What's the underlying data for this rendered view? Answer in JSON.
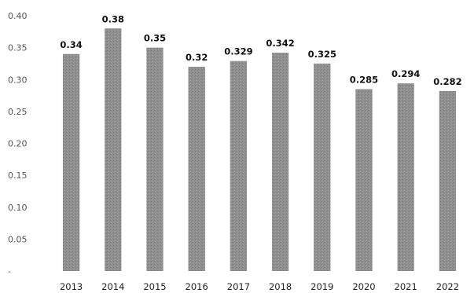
{
  "chart_data": {
    "type": "bar",
    "title": "",
    "xlabel": "",
    "ylabel": "",
    "categories": [
      "2013",
      "2014",
      "2015",
      "2016",
      "2017",
      "2018",
      "2019",
      "2020",
      "2021",
      "2022"
    ],
    "values": [
      0.34,
      0.38,
      0.35,
      0.32,
      0.329,
      0.342,
      0.325,
      0.285,
      0.294,
      0.282
    ],
    "data_labels": [
      "0.34",
      "0.38",
      "0.35",
      "0.32",
      "0.329",
      "0.342",
      "0.325",
      "0.285",
      "0.294",
      "0.282"
    ],
    "ylim": [
      0,
      0.4
    ],
    "y_ticks": [
      0,
      0.05,
      0.1,
      0.15,
      0.2,
      0.25,
      0.3,
      0.35,
      0.4
    ],
    "y_tick_labels": [
      "-",
      "0.05",
      "0.10",
      "0.15",
      "0.20",
      "0.25",
      "0.30",
      "0.35",
      "0.40"
    ],
    "grid": false,
    "legend": "none",
    "colors": {
      "bar": "#8f8f8f",
      "text": "#222222",
      "background": "#ffffff"
    }
  }
}
